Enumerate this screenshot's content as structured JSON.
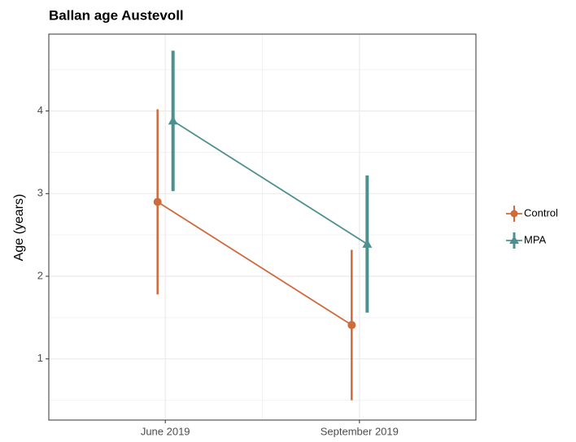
{
  "chart_data": {
    "type": "pointrange",
    "title": "Ballan age Austevoll",
    "y_label": "Age (years)",
    "categories": [
      "June 2019",
      "September 2019"
    ],
    "series": [
      {
        "name": "Control",
        "color": "#cf6a3a",
        "values": [
          2.9,
          1.41
        ],
        "errors": [
          1.12,
          0.91
        ]
      },
      {
        "name": "MPA",
        "color": "#4e9090",
        "values": [
          3.88,
          2.39
        ],
        "errors": [
          0.85,
          0.83
        ]
      }
    ],
    "ylim": [
      0.26,
      4.93
    ],
    "yticks": [
      1,
      2,
      3,
      4
    ],
    "grid": true,
    "legend": "right"
  }
}
